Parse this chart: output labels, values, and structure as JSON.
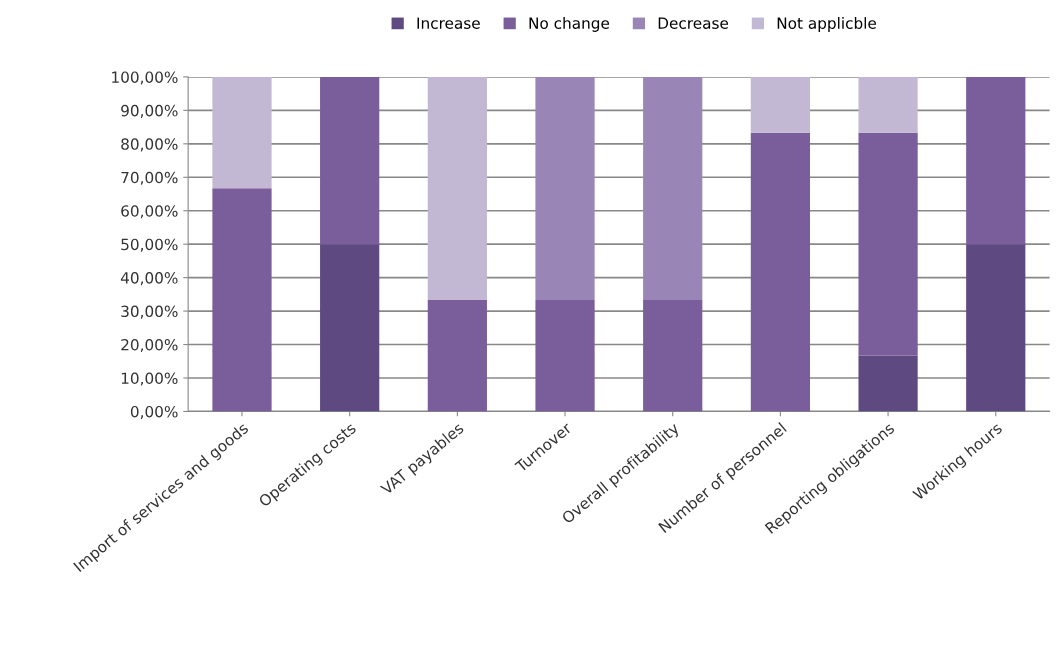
{
  "chart_data": {
    "type": "bar",
    "stacked": true,
    "categories": [
      "Import of services and goods",
      "Operating costs",
      "VAT payables",
      "Turnover",
      "Overall profitability",
      "Number of personnel",
      "Reporting obligations",
      "Working hours"
    ],
    "series": [
      {
        "name": "Increase",
        "color": "#5e4a80",
        "values": [
          0,
          50,
          0,
          0,
          0,
          0,
          16.7,
          50
        ]
      },
      {
        "name": "No change",
        "color": "#7a5d9b",
        "values": [
          66.7,
          50,
          33.3,
          33.3,
          33.3,
          83.3,
          66.6,
          50
        ]
      },
      {
        "name": "Decrease",
        "color": "#9a86b6",
        "values": [
          0,
          0,
          0,
          66.7,
          66.7,
          0,
          0,
          0
        ]
      },
      {
        "name": "Not applicble",
        "color": "#c3b8d4",
        "values": [
          33.3,
          0,
          66.7,
          0,
          0,
          16.7,
          16.7,
          0
        ]
      }
    ],
    "ylim": [
      0,
      100
    ],
    "yticks": [
      {
        "value": 0,
        "label": "0,00%"
      },
      {
        "value": 10,
        "label": "10,00%"
      },
      {
        "value": 20,
        "label": "20,00%"
      },
      {
        "value": 30,
        "label": "30,00%"
      },
      {
        "value": 40,
        "label": "40,00%"
      },
      {
        "value": 50,
        "label": "50,00%"
      },
      {
        "value": 60,
        "label": "60,00%"
      },
      {
        "value": 70,
        "label": "70,00%"
      },
      {
        "value": 80,
        "label": "80,00%"
      },
      {
        "value": 90,
        "label": "90,00%"
      },
      {
        "value": 100,
        "label": "100,00%"
      }
    ],
    "grid": "y",
    "legend": "top"
  }
}
